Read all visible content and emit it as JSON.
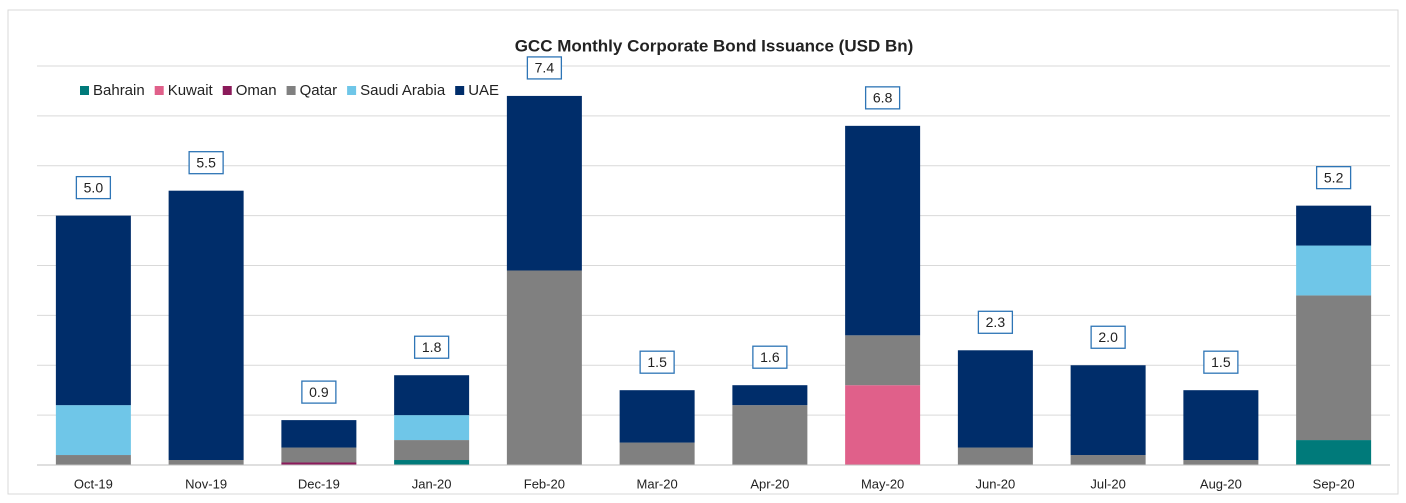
{
  "chart_data": {
    "type": "stacked_bar",
    "title": "GCC Monthly Corporate Bond Issuance (USD Bn)",
    "categories": [
      "Oct-19",
      "Nov-19",
      "Dec-19",
      "Jan-20",
      "Feb-20",
      "Mar-20",
      "Apr-20",
      "May-20",
      "Jun-20",
      "Jul-20",
      "Aug-20",
      "Sep-20"
    ],
    "series": [
      {
        "name": "Bahrain",
        "color": "#007a7a",
        "values": [
          null,
          null,
          null,
          0.1,
          null,
          null,
          null,
          null,
          null,
          null,
          null,
          0.5
        ]
      },
      {
        "name": "Kuwait",
        "color": "#e0608a",
        "values": [
          null,
          null,
          null,
          null,
          null,
          null,
          null,
          1.6,
          null,
          null,
          null,
          null
        ]
      },
      {
        "name": "Oman",
        "color": "#8b1a5a",
        "values": [
          null,
          null,
          0.05,
          null,
          null,
          null,
          null,
          null,
          null,
          null,
          null,
          null
        ]
      },
      {
        "name": "Qatar",
        "color": "#808080",
        "values": [
          0.2,
          0.1,
          0.3,
          0.4,
          3.9,
          0.45,
          1.2,
          1.0,
          0.35,
          0.2,
          0.1,
          2.9
        ]
      },
      {
        "name": "Saudi Arabia",
        "color": "#6fc6e8",
        "values": [
          1.0,
          null,
          null,
          0.5,
          null,
          null,
          null,
          null,
          null,
          null,
          null,
          1.0
        ]
      },
      {
        "name": "UAE",
        "color": "#002d6a",
        "values": [
          3.8,
          5.4,
          0.55,
          0.8,
          3.5,
          1.05,
          0.4,
          4.2,
          1.95,
          1.8,
          1.4,
          0.8
        ]
      }
    ],
    "totals": [
      5.0,
      5.5,
      0.9,
      1.8,
      7.4,
      1.5,
      1.6,
      6.8,
      2.3,
      2.0,
      1.5,
      5.2
    ],
    "total_labels": [
      "5.0",
      "5.5",
      "0.9",
      "1.8",
      "7.4",
      "1.5",
      "1.6",
      "6.8",
      "2.3",
      "2.0",
      "1.5",
      "5.2"
    ],
    "ylim": [
      0,
      8
    ],
    "yticks": [
      0,
      1,
      2,
      3,
      4,
      5,
      6,
      7,
      8
    ],
    "grid": true,
    "legend": "top-left"
  }
}
